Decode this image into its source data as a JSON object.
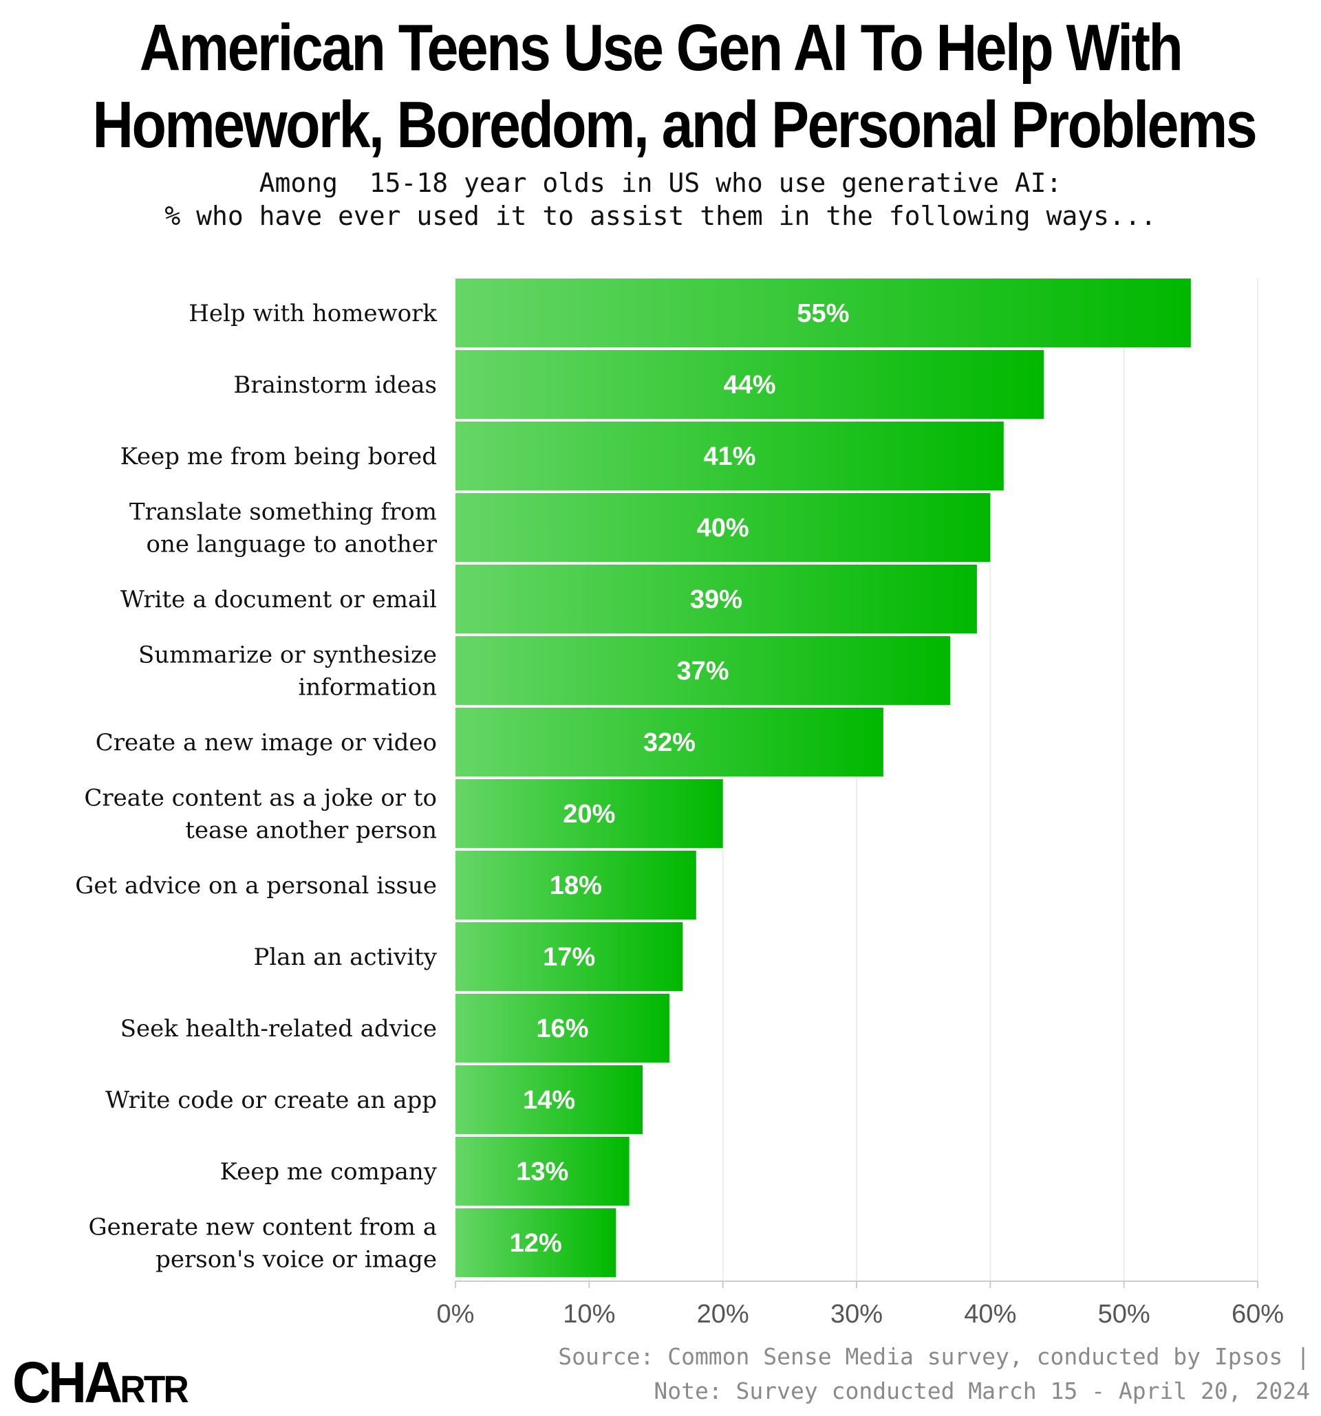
{
  "header": {
    "title_line1": "American Teens Use Gen AI To Help With",
    "title_line2": "Homework, Boredom, and Personal Problems",
    "subtitle_line1": "Among  15-18 year olds in US who use generative AI:",
    "subtitle_line2": "% who have ever used it to assist them in the following ways..."
  },
  "chart_data": {
    "type": "bar",
    "orientation": "horizontal",
    "title": "American Teens Use Gen AI To Help With Homework, Boredom, and Personal Problems",
    "subtitle": "Among  15-18 year olds in US who use generative AI: % who have ever used it to assist them in the following ways...",
    "categories": [
      [
        "Help with homework"
      ],
      [
        "Brainstorm ideas"
      ],
      [
        "Keep me from being bored"
      ],
      [
        "Translate something from",
        "one language to another"
      ],
      [
        "Write a document or email"
      ],
      [
        "Summarize or synthesize",
        "information"
      ],
      [
        "Create a new image or video"
      ],
      [
        "Create content as a joke or to",
        "tease another person"
      ],
      [
        "Get advice on a personal issue"
      ],
      [
        "Plan an activity"
      ],
      [
        "Seek health-related advice"
      ],
      [
        "Write code or create an app"
      ],
      [
        "Keep me company"
      ],
      [
        "Generate new content from a",
        "person's voice or image"
      ]
    ],
    "values": [
      55,
      44,
      41,
      40,
      39,
      37,
      32,
      20,
      18,
      17,
      16,
      14,
      13,
      12
    ],
    "value_labels": [
      "55%",
      "44%",
      "41%",
      "40%",
      "39%",
      "37%",
      "32%",
      "20%",
      "18%",
      "17%",
      "16%",
      "14%",
      "13%",
      "12%"
    ],
    "xlim": [
      0,
      60
    ],
    "xticks": [
      0,
      10,
      20,
      30,
      40,
      50,
      60
    ],
    "xtick_labels": [
      "0%",
      "10%",
      "20%",
      "30%",
      "40%",
      "50%",
      "60%"
    ],
    "xlabel": "",
    "ylabel": "",
    "grid": true,
    "colors": {
      "bar_start": "#66d666",
      "bar_end": "#00b800",
      "value_label": "#ffffff",
      "grid": "#ececec",
      "axis": "#cccccc"
    }
  },
  "footer": {
    "source_line1": "Source: Common Sense Media survey, conducted by Ipsos |",
    "source_line2": "Note: Survey conducted March 15 - April 20, 2024"
  },
  "logo": {
    "text_big": "CHA",
    "text_small": "RTR"
  }
}
